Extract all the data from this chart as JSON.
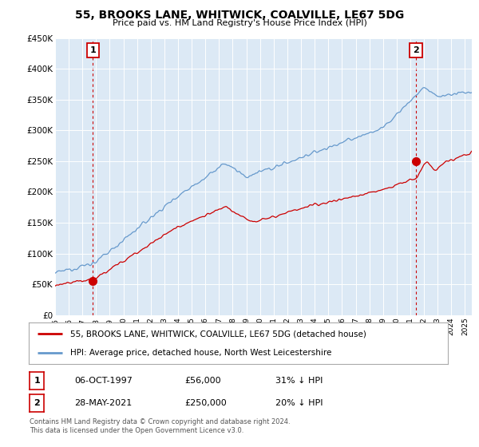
{
  "title": "55, BROOKS LANE, WHITWICK, COALVILLE, LE67 5DG",
  "subtitle": "Price paid vs. HM Land Registry's House Price Index (HPI)",
  "ylim": [
    0,
    450000
  ],
  "yticks": [
    0,
    50000,
    100000,
    150000,
    200000,
    250000,
    300000,
    350000,
    400000,
    450000
  ],
  "xlim_start": 1995.0,
  "xlim_end": 2025.5,
  "hpi_color": "#6699cc",
  "price_color": "#cc0000",
  "sale1": {
    "date_num": 1997.77,
    "price": 56000,
    "label": "1"
  },
  "sale2": {
    "date_num": 2021.41,
    "price": 250000,
    "label": "2"
  },
  "legend_line1": "55, BROOKS LANE, WHITWICK, COALVILLE, LE67 5DG (detached house)",
  "legend_line2": "HPI: Average price, detached house, North West Leicestershire",
  "table_row1": [
    "1",
    "06-OCT-1997",
    "£56,000",
    "31% ↓ HPI"
  ],
  "table_row2": [
    "2",
    "28-MAY-2021",
    "£250,000",
    "20% ↓ HPI"
  ],
  "footnote": "Contains HM Land Registry data © Crown copyright and database right 2024.\nThis data is licensed under the Open Government Licence v3.0.",
  "background_color": "#ffffff",
  "chart_bg_color": "#dce9f5",
  "grid_color": "#ffffff"
}
